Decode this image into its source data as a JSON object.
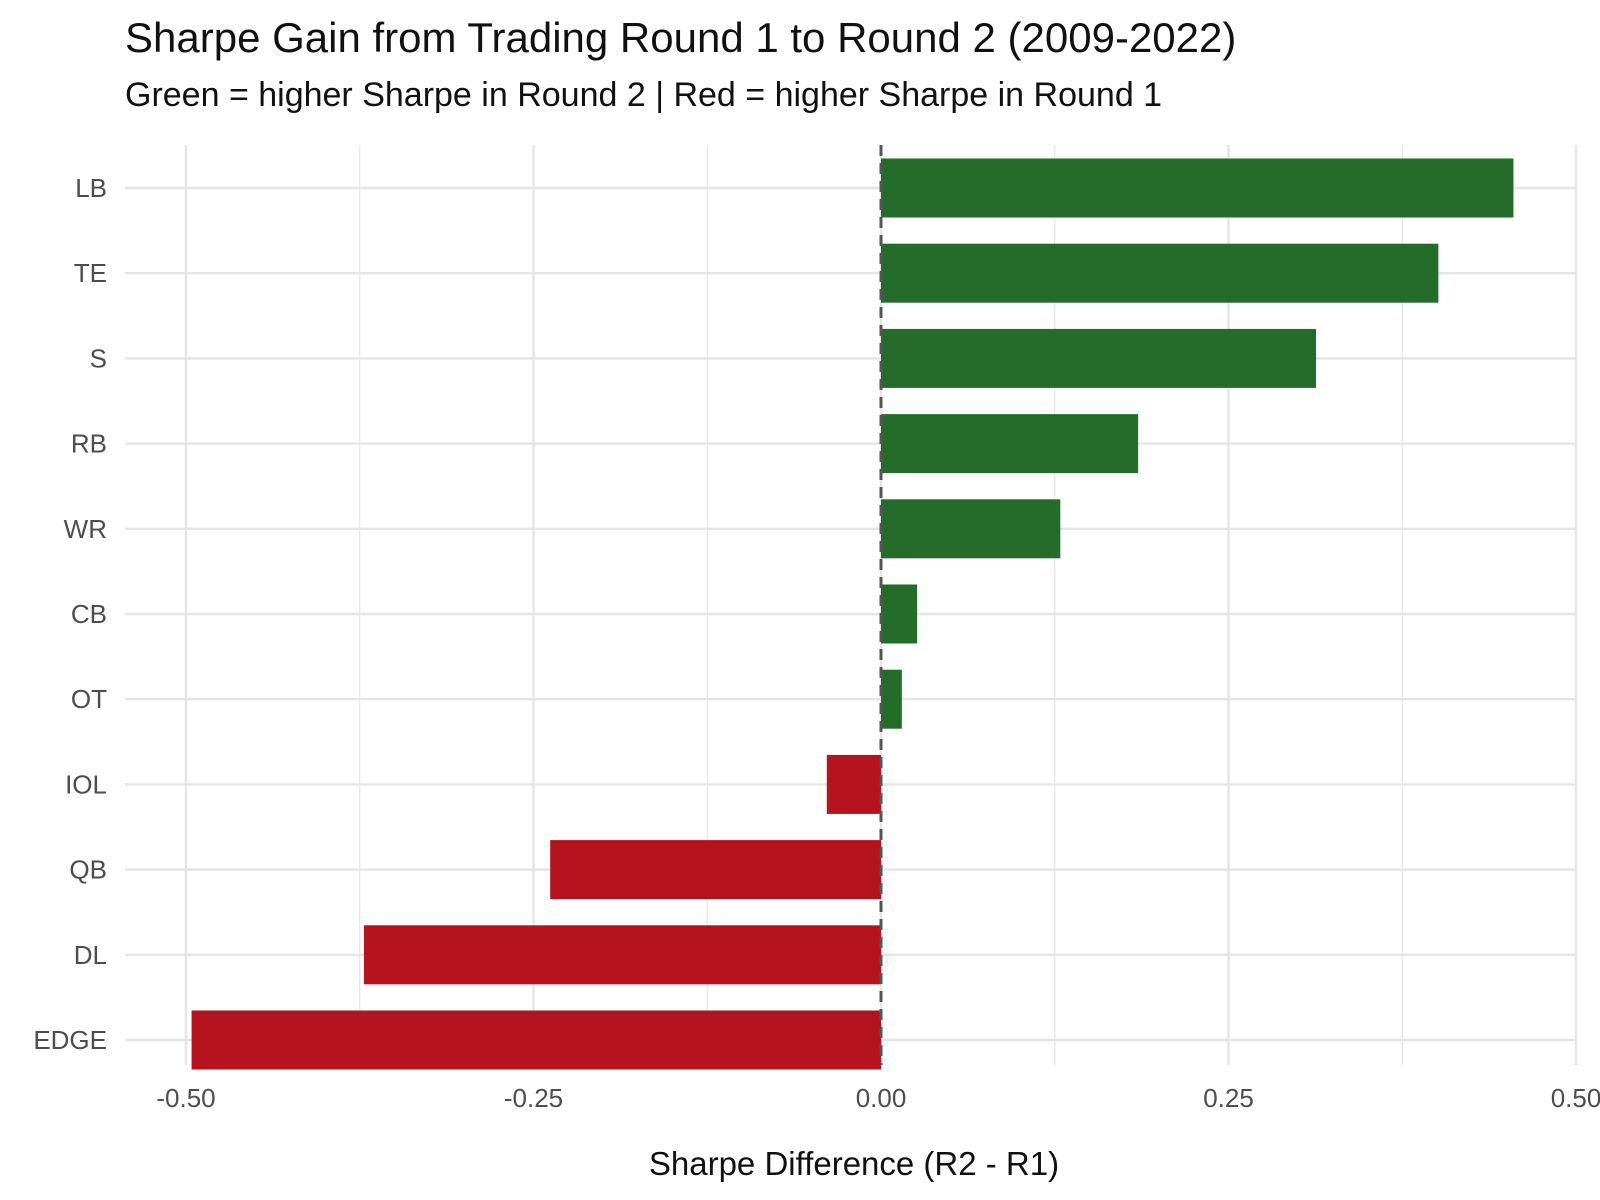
{
  "chart_data": {
    "type": "bar",
    "orientation": "horizontal",
    "title": "Sharpe Gain from Trading Round 1 to Round 2 (2009-2022)",
    "subtitle": "Green = higher Sharpe in Round 2 | Red = higher Sharpe in Round 1",
    "xlabel": "Sharpe Difference (R2 - R1)",
    "ylabel": "",
    "categories": [
      "LB",
      "TE",
      "S",
      "RB",
      "WR",
      "CB",
      "OT",
      "IOL",
      "QB",
      "DL",
      "EDGE"
    ],
    "values": [
      0.455,
      0.401,
      0.313,
      0.185,
      0.129,
      0.026,
      0.015,
      -0.039,
      -0.238,
      -0.372,
      -0.496
    ],
    "xlim": [
      -0.5,
      0.5
    ],
    "xticks": [
      -0.5,
      -0.25,
      0.0,
      0.25,
      0.5
    ],
    "xtick_labels": [
      "-0.50",
      "-0.25",
      "0.00",
      "0.25",
      "0.50"
    ],
    "reference_line": 0,
    "grid": true,
    "legend": "none",
    "colors": {
      "positive": "#256B2A",
      "negative": "#B5141F",
      "grid": "#E5E5E5",
      "ref_line": "#555555"
    }
  }
}
